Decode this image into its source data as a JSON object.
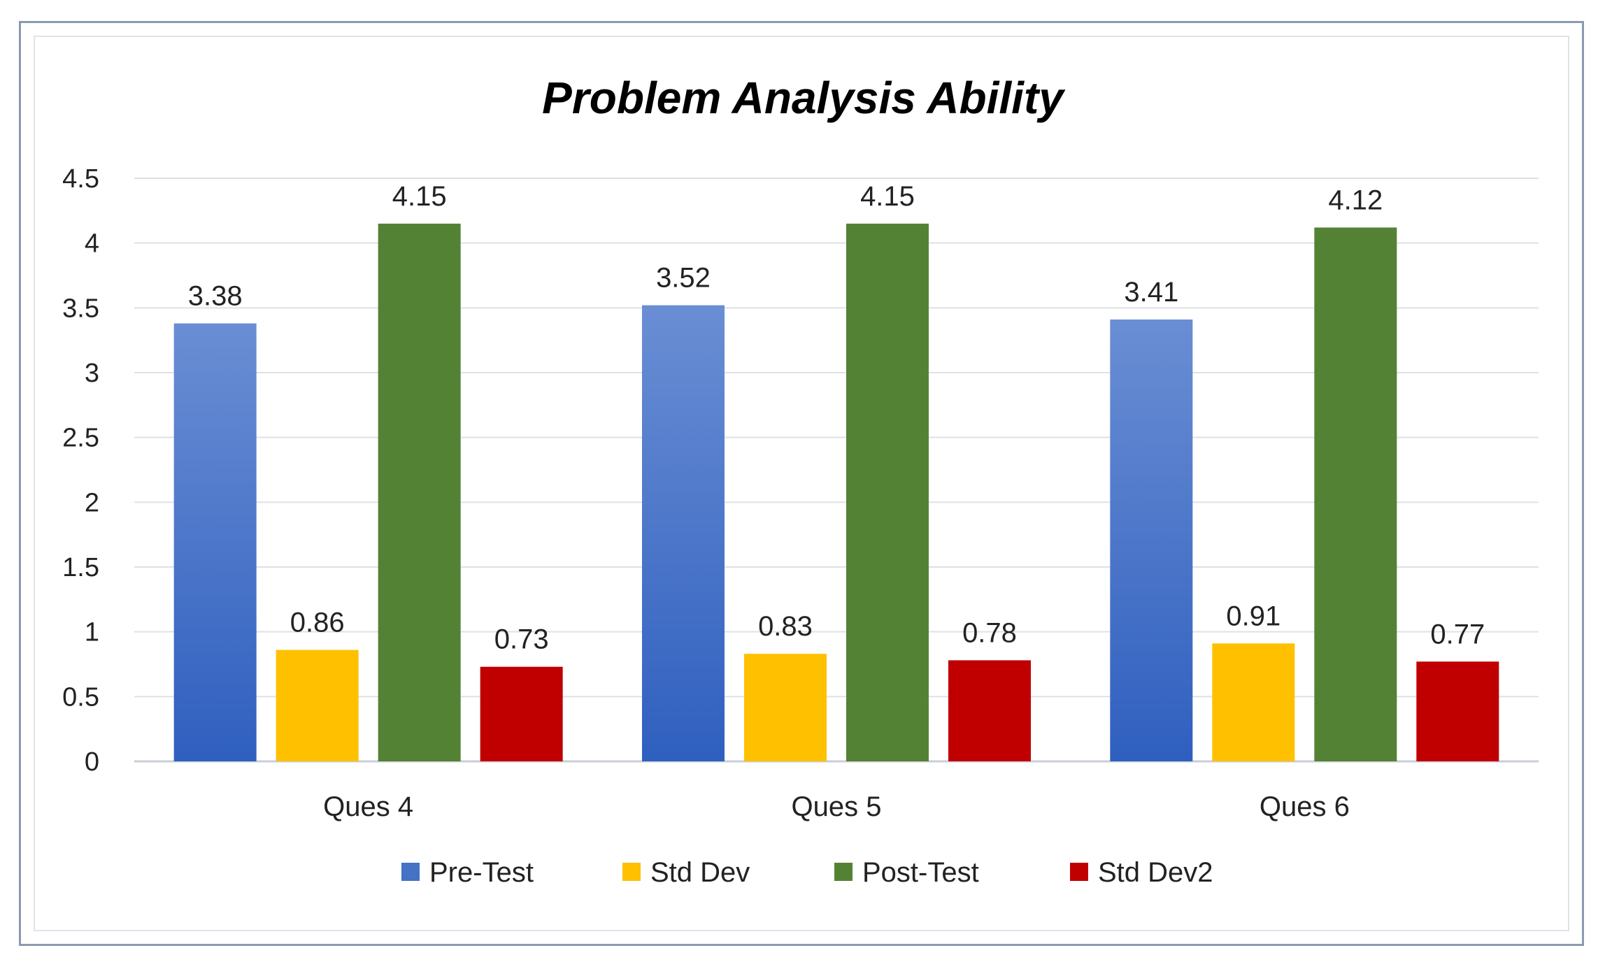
{
  "chart_data": {
    "type": "bar",
    "title": "Problem Analysis Ability",
    "categories": [
      "Ques 4",
      "Ques 5",
      "Ques 6"
    ],
    "series": [
      {
        "name": "Pre-Test",
        "color": "#4472c4",
        "values": [
          3.38,
          3.52,
          3.41
        ],
        "labels": [
          "3.38",
          "3.52",
          "3.41"
        ]
      },
      {
        "name": "Std Dev",
        "color": "#ffc000",
        "values": [
          0.86,
          0.83,
          0.91
        ],
        "labels": [
          "0.86",
          "0.83",
          "0.91"
        ]
      },
      {
        "name": "Post-Test",
        "color": "#548235",
        "values": [
          4.15,
          4.15,
          4.12
        ],
        "labels": [
          "4.15",
          "4.15",
          "4.12"
        ]
      },
      {
        "name": "Std Dev2",
        "color": "#c00000",
        "values": [
          0.73,
          0.78,
          0.77
        ],
        "labels": [
          "0.73",
          "0.78",
          "0.77"
        ]
      }
    ],
    "ylim": [
      0,
      4.5
    ],
    "yticks": [
      0,
      0.5,
      1,
      1.5,
      2,
      2.5,
      3,
      3.5,
      4,
      4.5
    ],
    "ytick_labels": [
      "0",
      "0.5",
      "1",
      "1.5",
      "2",
      "2.5",
      "3",
      "3.5",
      "4",
      "4.5"
    ],
    "xlabel": "",
    "ylabel": "",
    "grid": true,
    "legend_position": "bottom"
  }
}
